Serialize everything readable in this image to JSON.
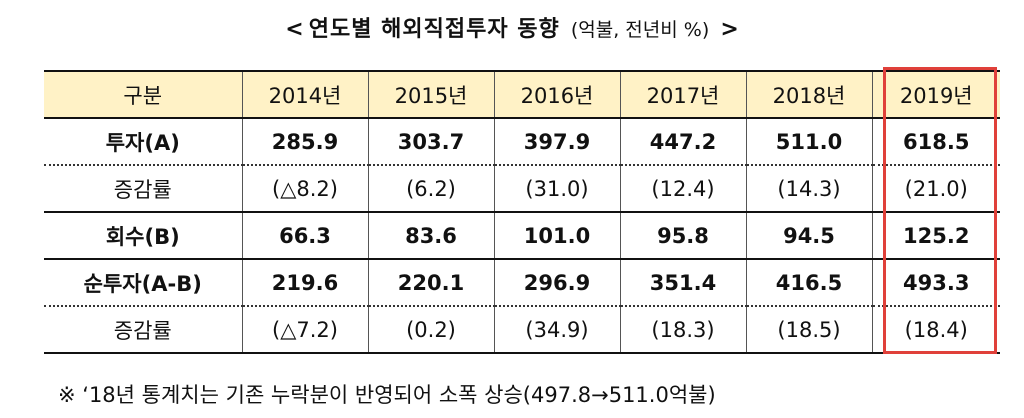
{
  "title": {
    "open": "<",
    "main": "연도별 해외직접투자 동향",
    "unit": "(억불, 전년비 %)",
    "close": ">"
  },
  "columns": [
    "구분",
    "2014년",
    "2015년",
    "2016년",
    "2017년",
    "2018년",
    "2019년"
  ],
  "rows": [
    {
      "label": "투자(A)",
      "values": [
        "285.9",
        "303.7",
        "397.9",
        "447.2",
        "511.0",
        "618.5"
      ]
    },
    {
      "label": "증감률",
      "values": [
        "(△8.2)",
        "(6.2)",
        "(31.0)",
        "(12.4)",
        "(14.3)",
        "(21.0)"
      ]
    },
    {
      "label": "회수(B)",
      "values": [
        "66.3",
        "83.6",
        "101.0",
        "95.8",
        "94.5",
        "125.2"
      ]
    },
    {
      "label": "순투자(A-B)",
      "values": [
        "219.6",
        "220.1",
        "296.9",
        "351.4",
        "416.5",
        "493.3"
      ]
    },
    {
      "label": "증감률",
      "values": [
        "(△7.2)",
        "(0.2)",
        "(34.9)",
        "(18.3)",
        "(18.5)",
        "(18.4)"
      ]
    }
  ],
  "note": "※ ‘18년 통계치는 기존 누락분이 반영되어 소폭 상승(497.8→511.0억불)",
  "colors": {
    "header_bg": "#fff2c6",
    "highlight": "#e0403a"
  }
}
